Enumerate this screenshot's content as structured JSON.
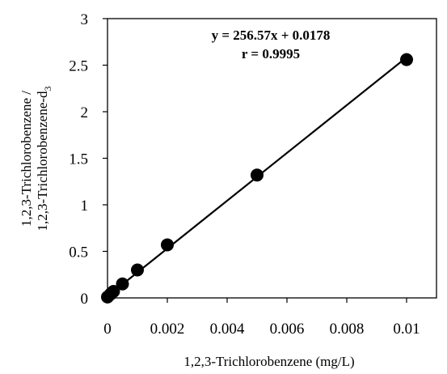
{
  "chart_data": {
    "type": "scatter",
    "title": "",
    "xlabel": "1,2,3-Trichlorobenzene (mg/L)",
    "ylabel_lines": [
      "1,2,3-Trichlorobenzene /",
      "1,2,3-Trichlorobenzene-d",
      "3"
    ],
    "xlim": [
      0,
      0.011
    ],
    "ylim": [
      0,
      3
    ],
    "x_ticks": [
      0,
      0.002,
      0.004,
      0.006,
      0.008,
      0.01
    ],
    "x_tick_labels": [
      "0",
      "0.002",
      "0.004",
      "0.006",
      "0.008",
      "0.01"
    ],
    "y_ticks": [
      0,
      0.5,
      1,
      1.5,
      2,
      2.5,
      3
    ],
    "y_tick_labels": [
      "0",
      "0.5",
      "1",
      "1.5",
      "2",
      "2.5",
      "3"
    ],
    "grid": false,
    "legend": "none",
    "series": [
      {
        "x": [
          0,
          0.0001,
          0.0002,
          0.0005,
          0.001,
          0.002,
          0.005,
          0.01
        ],
        "y": [
          0.01,
          0.04,
          0.07,
          0.15,
          0.3,
          0.57,
          1.32,
          2.56
        ],
        "marker": "circle",
        "color": "#000000"
      }
    ],
    "trendline": {
      "slope": 256.57,
      "intercept": 0.0178,
      "color": "#000000"
    },
    "annotations": [
      "y = 256.57x + 0.0178",
      "r = 0.9995"
    ]
  }
}
